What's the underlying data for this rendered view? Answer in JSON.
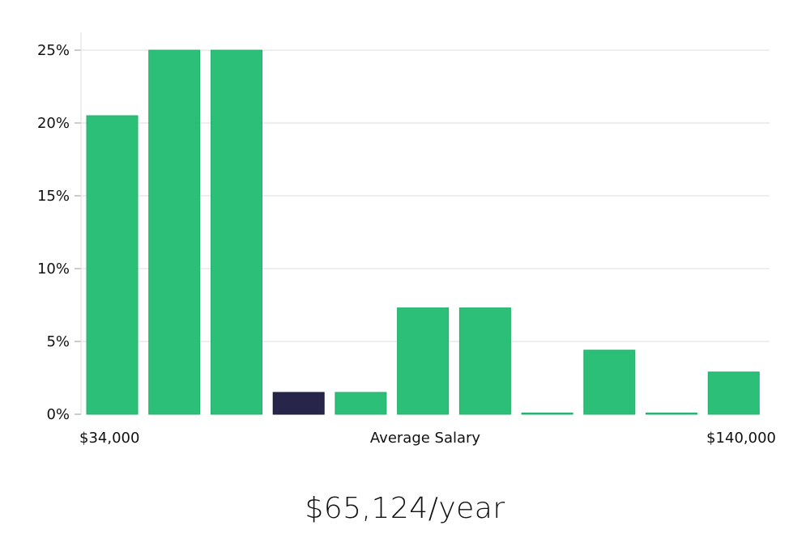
{
  "chart_data": {
    "type": "bar",
    "categories": [
      "1",
      "2",
      "3",
      "4",
      "5",
      "6",
      "7",
      "8",
      "9",
      "10",
      "11"
    ],
    "values": [
      20.5,
      25,
      25,
      1.5,
      1.5,
      7.3,
      7.3,
      0,
      4.4,
      0,
      2.9
    ],
    "highlight_index": 3,
    "ylim": [
      0,
      25
    ],
    "yticks": [
      "0%",
      "5%",
      "10%",
      "15%",
      "20%",
      "25%"
    ],
    "ytick_values": [
      0,
      5,
      10,
      15,
      20,
      25
    ],
    "xlabel": "Average Salary",
    "x_min_label": "$34,000",
    "x_max_label": "$140,000",
    "grid": true,
    "colors": {
      "bar": "#2bbf78",
      "highlight": "#27264a",
      "grid": "#dddddd"
    }
  },
  "summary": {
    "salary": "$65,124/year"
  }
}
